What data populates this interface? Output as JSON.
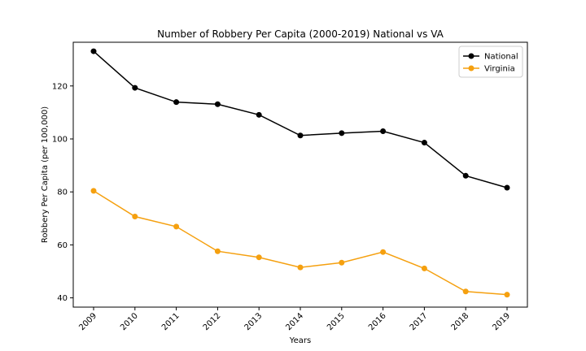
{
  "chart_data": {
    "type": "line",
    "title": "Number of Robbery Per Capita (2000-2019) National vs VA",
    "xlabel": "Years",
    "ylabel": "Robbery Per Capita (per 100,000)",
    "categories": [
      "2009",
      "2010",
      "2011",
      "2012",
      "2013",
      "2014",
      "2015",
      "2016",
      "2017",
      "2018",
      "2019"
    ],
    "y_ticks": [
      40,
      60,
      80,
      100,
      120
    ],
    "ylim": [
      36.5,
      136.5
    ],
    "grid": false,
    "legend_position": "top-right",
    "series": [
      {
        "name": "National",
        "color": "#000000",
        "values": [
          133.1,
          119.3,
          113.9,
          113.1,
          109.1,
          101.3,
          102.2,
          102.9,
          98.6,
          86.1,
          81.6
        ]
      },
      {
        "name": "Virginia",
        "color": "#f5a00f",
        "values": [
          80.4,
          70.7,
          66.9,
          57.6,
          55.3,
          51.5,
          53.3,
          57.3,
          51.1,
          42.4,
          41.2
        ]
      }
    ]
  }
}
